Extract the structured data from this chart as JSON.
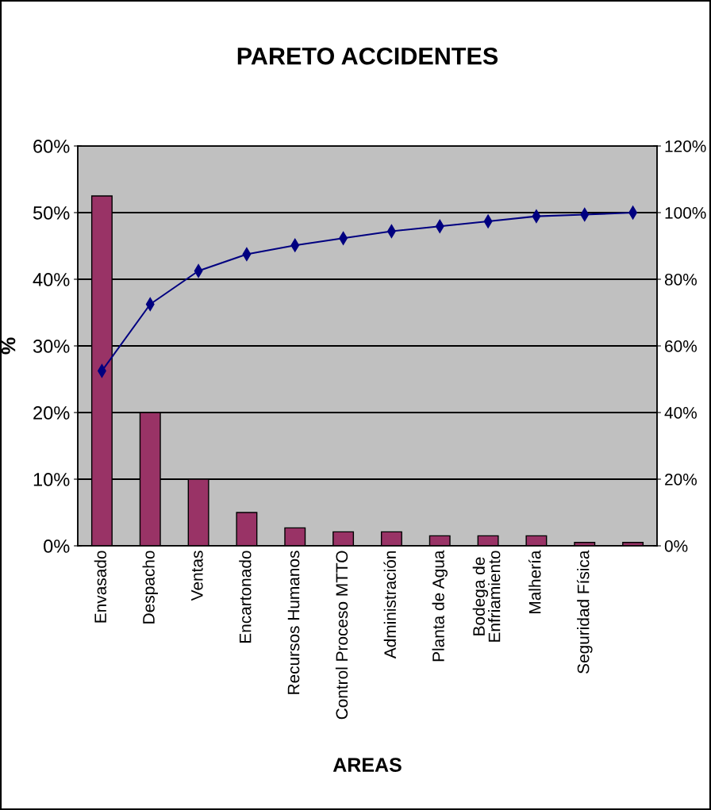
{
  "chart_data": {
    "type": "bar",
    "title": "PARETO ACCIDENTES",
    "xlabel": "AREAS",
    "ylabel": "%",
    "categories": [
      "Envasado",
      "Despacho",
      "Ventas",
      "Encartonado",
      "Recursos Humanos",
      "Control Proceso MTTO",
      "Administración",
      "Planta de Agua",
      "Bodega de\nEnfriamiento",
      "Malhería",
      "Seguridad Física",
      null
    ],
    "series": [
      {
        "color": "#993366",
        "values": [
          52.5,
          20,
          10,
          5,
          2.7,
          2.1,
          2.1,
          1.5,
          1.5,
          1.5,
          0.5,
          0.5
        ]
      },
      {
        "type": "line",
        "axis": "y2",
        "color": "#000080",
        "marker": "diamond",
        "values": [
          52.5,
          72.5,
          82.5,
          87.5,
          90.2,
          92.3,
          94.4,
          95.9,
          97.4,
          98.9,
          99.4,
          100
        ]
      }
    ],
    "ylim": [
      0,
      60
    ],
    "yticks": [
      {
        "value": 0,
        "label": "0%"
      },
      {
        "value": 10,
        "label": "10%"
      },
      {
        "value": 20,
        "label": "20%"
      },
      {
        "value": 30,
        "label": "30%"
      },
      {
        "value": 40,
        "label": "40%"
      },
      {
        "value": 50,
        "label": "50%"
      },
      {
        "value": 60,
        "label": "60%"
      }
    ],
    "y2lim": [
      0,
      120
    ],
    "y2ticks": [
      {
        "value": 0,
        "label": "0%"
      },
      {
        "value": 20,
        "label": "20%"
      },
      {
        "value": 40,
        "label": "40%"
      },
      {
        "value": 60,
        "label": "60%"
      },
      {
        "value": 80,
        "label": "80%"
      },
      {
        "value": 100,
        "label": "100%"
      },
      {
        "value": 120,
        "label": "120%"
      }
    ],
    "grid": "y",
    "legend": false
  }
}
